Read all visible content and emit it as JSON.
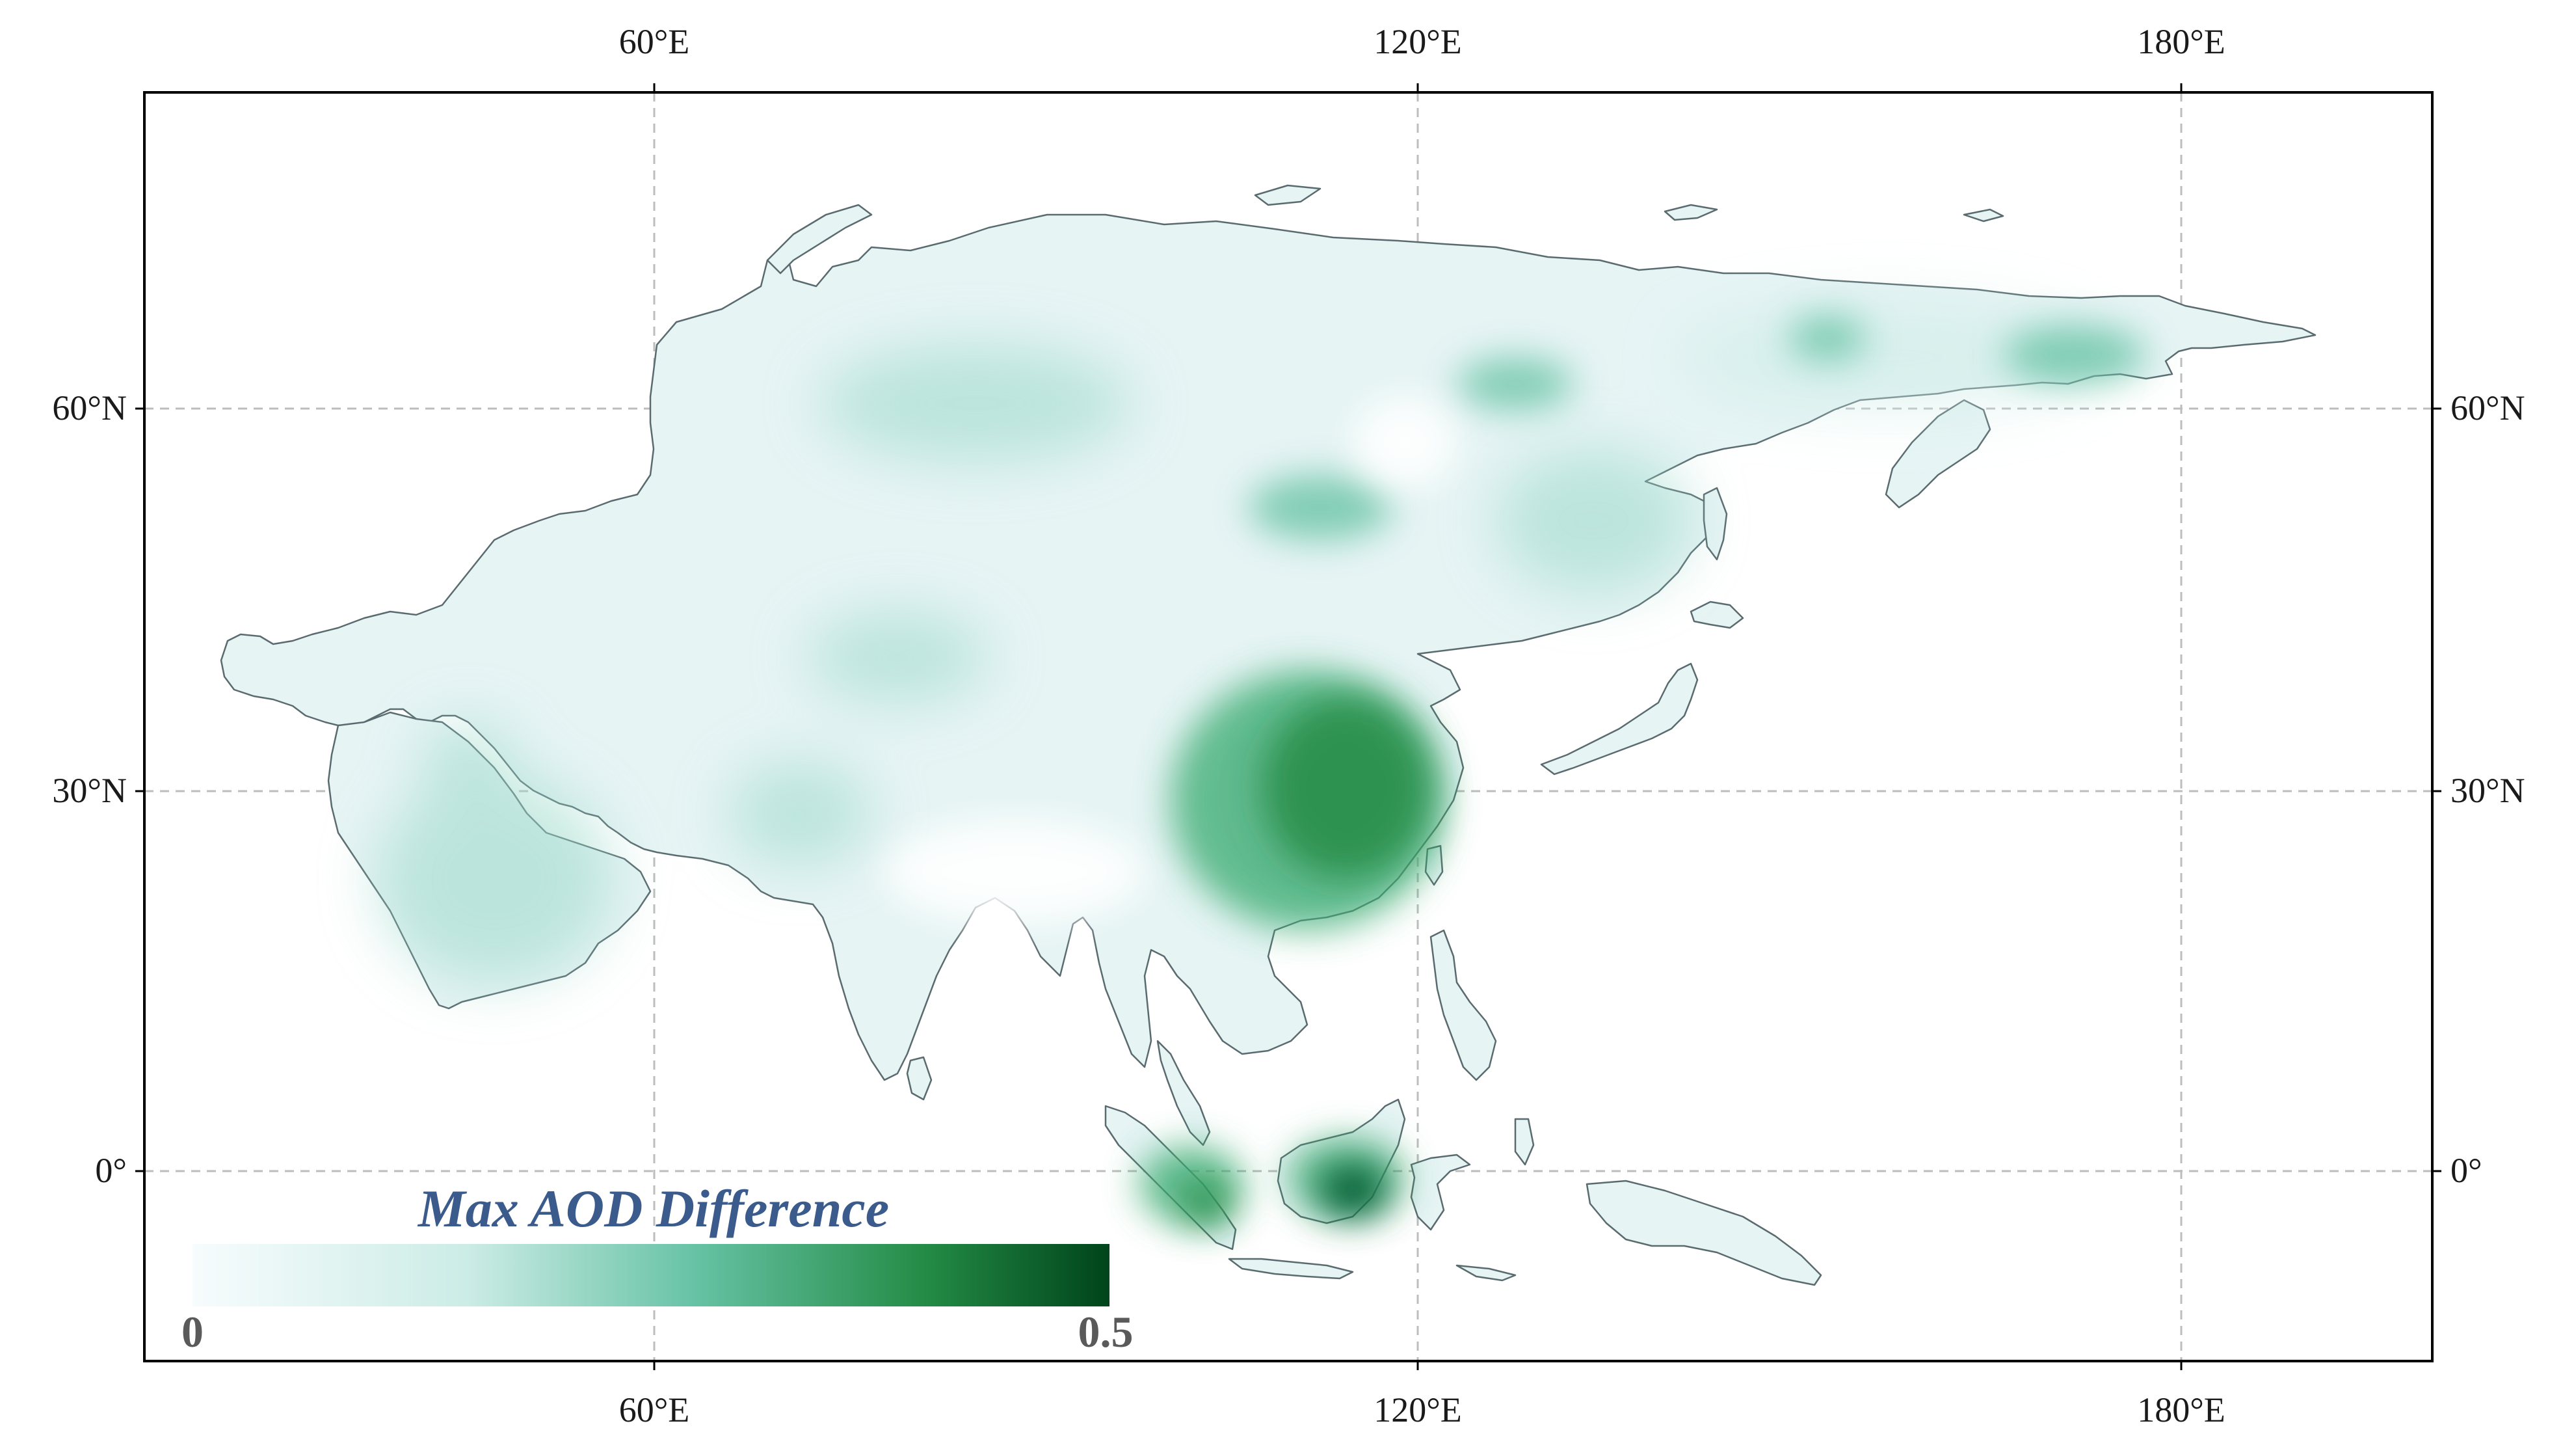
{
  "map": {
    "lon_labels": [
      "60°E",
      "120°E",
      "180°E"
    ],
    "lat_labels": [
      "60°N",
      "30°N",
      "0°"
    ],
    "colorbar": {
      "title": "Max AOD Difference",
      "min_label": "0",
      "max_label": "0.5",
      "colors": [
        "#f7fcfd",
        "#ccece6",
        "#66c2a4",
        "#238b45",
        "#00441b"
      ]
    },
    "colors": {
      "land_base": "#e6f4f4",
      "coastline": "#5a6b70",
      "grid": "#bdbdbd",
      "frame": "#000000"
    }
  }
}
